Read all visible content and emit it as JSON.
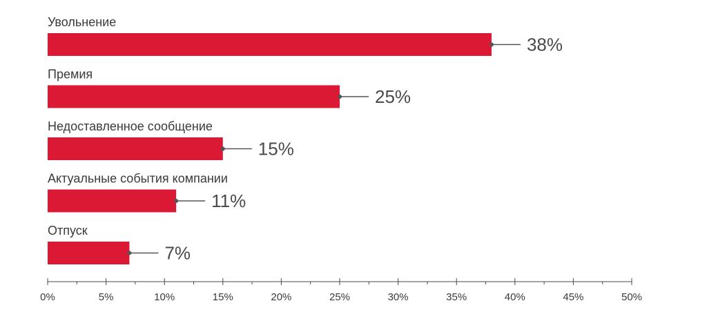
{
  "chart_data": {
    "type": "bar",
    "orientation": "horizontal",
    "title": "",
    "xlabel": "",
    "ylabel": "",
    "categories": [
      "Увольнение",
      "Премия",
      "Недоставленное сообщение",
      "Актуальные события компании",
      "Отпуск"
    ],
    "values": [
      38,
      25,
      15,
      11,
      7
    ],
    "value_labels": [
      "38%",
      "25%",
      "15%",
      "11%",
      "7%"
    ],
    "xlim": [
      0,
      50
    ],
    "x_ticks": [
      0,
      5,
      10,
      15,
      20,
      25,
      30,
      35,
      40,
      45,
      50
    ],
    "x_tick_labels": [
      "0%",
      "5%",
      "10%",
      "15%",
      "20%",
      "25%",
      "30%",
      "35%",
      "40%",
      "45%",
      "50%"
    ],
    "grid": false,
    "legend": "none",
    "colors": {
      "bar": "#dc1935",
      "axis": "#4a4a4a",
      "leader": "#555555",
      "text": "#3a3a3a"
    }
  }
}
